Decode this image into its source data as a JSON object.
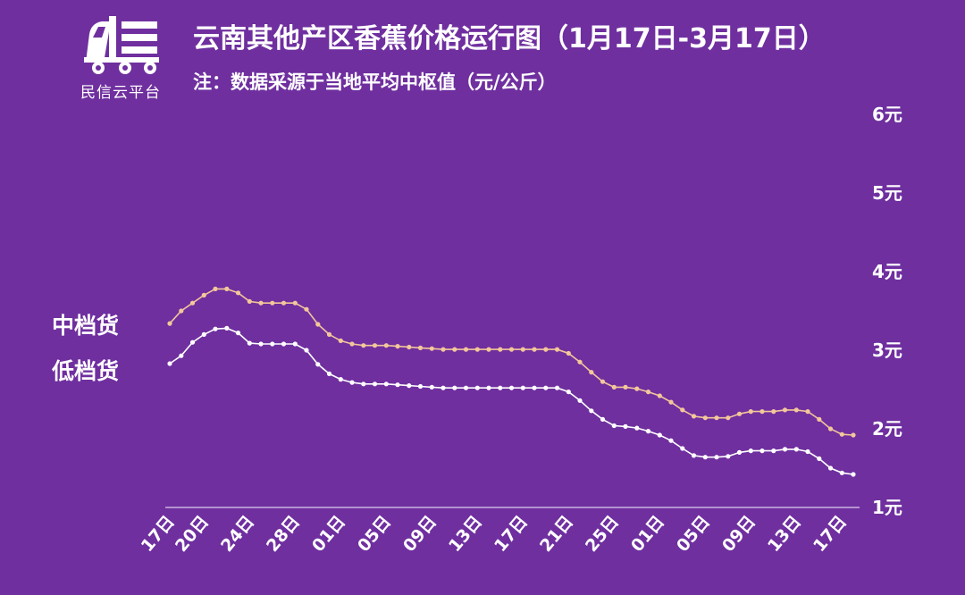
{
  "brand": {
    "name": "民信云平台",
    "logo_icon": "truck-icon"
  },
  "header": {
    "title": "云南其他产区香蕉价格运行图（1月17日-3月17日）",
    "subtitle": "注：数据采源于当地平均中枢值（元/公斤）"
  },
  "colors": {
    "background": "#6f2f9f",
    "mid_series": "#f3c79a",
    "low_series": "#ffffff",
    "axis": "#c9b3de"
  },
  "chart_data": {
    "type": "line",
    "title": "云南其他产区香蕉价格运行图（1月17日-3月17日）",
    "subtitle": "注：数据采源于当地平均中枢值（元/公斤）",
    "y_ticks": [
      "1元",
      "2元",
      "3元",
      "4元",
      "5元",
      "6元"
    ],
    "ylim": [
      1,
      6
    ],
    "x_tick_labels": [
      "17日",
      "20日",
      "24日",
      "28日",
      "01日",
      "05日",
      "09日",
      "13日",
      "17日",
      "21日",
      "25日",
      "01日",
      "05日",
      "09日",
      "13日",
      "17日"
    ],
    "x_tick_index": [
      0,
      3,
      7,
      11,
      15,
      19,
      23,
      27,
      31,
      35,
      39,
      43,
      47,
      51,
      55,
      59
    ],
    "grid": false,
    "legend_position": "left",
    "series": [
      {
        "name": "中档货",
        "values": [
          3.34,
          3.5,
          3.6,
          3.7,
          3.78,
          3.78,
          3.73,
          3.62,
          3.6,
          3.6,
          3.6,
          3.6,
          3.52,
          3.33,
          3.2,
          3.12,
          3.08,
          3.06,
          3.06,
          3.06,
          3.05,
          3.04,
          3.03,
          3.02,
          3.01,
          3.01,
          3.01,
          3.01,
          3.01,
          3.01,
          3.01,
          3.01,
          3.01,
          3.01,
          3.01,
          2.96,
          2.85,
          2.72,
          2.6,
          2.53,
          2.53,
          2.51,
          2.47,
          2.42,
          2.34,
          2.24,
          2.16,
          2.14,
          2.14,
          2.14,
          2.19,
          2.22,
          2.22,
          2.22,
          2.24,
          2.24,
          2.22,
          2.12,
          2.0,
          1.93,
          1.92
        ]
      },
      {
        "name": "低档货",
        "values": [
          2.83,
          2.93,
          3.1,
          3.2,
          3.27,
          3.28,
          3.22,
          3.09,
          3.08,
          3.08,
          3.08,
          3.08,
          3.0,
          2.82,
          2.7,
          2.63,
          2.59,
          2.57,
          2.57,
          2.57,
          2.56,
          2.55,
          2.54,
          2.53,
          2.52,
          2.52,
          2.52,
          2.52,
          2.52,
          2.52,
          2.52,
          2.52,
          2.52,
          2.52,
          2.52,
          2.47,
          2.36,
          2.23,
          2.12,
          2.04,
          2.03,
          2.01,
          1.97,
          1.92,
          1.85,
          1.75,
          1.66,
          1.64,
          1.64,
          1.65,
          1.7,
          1.72,
          1.72,
          1.72,
          1.74,
          1.74,
          1.71,
          1.62,
          1.5,
          1.44,
          1.42
        ]
      }
    ]
  }
}
